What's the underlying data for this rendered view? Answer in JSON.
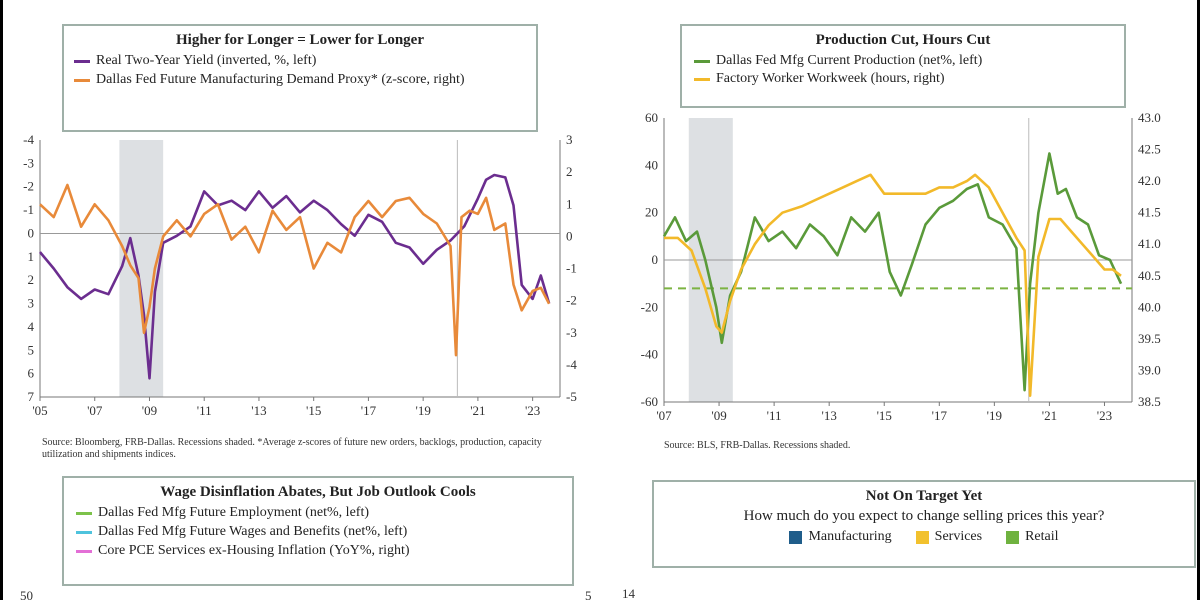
{
  "chart_data": [
    {
      "type": "line",
      "title": "Higher for Longer = Lower for Longer",
      "series": [
        {
          "name": "Real Two-Year Yield (inverted, %, left)",
          "color": "#6b2d8f",
          "axis": "left",
          "x": [
            2005,
            2005.5,
            2006,
            2006.5,
            2007,
            2007.5,
            2008,
            2008.3,
            2008.6,
            2008.8,
            2009,
            2009.2,
            2009.5,
            2010,
            2010.5,
            2011,
            2011.5,
            2012,
            2012.5,
            2013,
            2013.5,
            2014,
            2014.5,
            2015,
            2015.5,
            2016,
            2016.5,
            2017,
            2017.5,
            2018,
            2018.5,
            2019,
            2019.5,
            2020,
            2020.5,
            2021,
            2021.3,
            2021.6,
            2022,
            2022.3,
            2022.6,
            2023,
            2023.3,
            2023.6
          ],
          "y": [
            0.8,
            1.5,
            2.3,
            2.8,
            2.4,
            2.6,
            1.4,
            0.2,
            1.8,
            3.5,
            6.2,
            2.5,
            0.4,
            0.1,
            -0.3,
            -1.8,
            -1.2,
            -1.4,
            -1.0,
            -1.8,
            -1.1,
            -1.6,
            -0.9,
            -1.4,
            -1.0,
            -0.4,
            0.1,
            -0.8,
            -0.5,
            0.4,
            0.6,
            1.3,
            0.7,
            0.3,
            -0.3,
            -1.5,
            -2.3,
            -2.5,
            -2.4,
            -1.2,
            2.2,
            2.8,
            1.8,
            3.0
          ]
        },
        {
          "name": "Dallas Fed Future Manufacturing Demand Proxy* (z-score, right)",
          "color": "#e88a3a",
          "axis": "right",
          "x": [
            2005,
            2005.5,
            2006,
            2006.5,
            2007,
            2007.5,
            2008,
            2008.3,
            2008.6,
            2008.8,
            2009,
            2009.2,
            2009.5,
            2010,
            2010.5,
            2011,
            2011.5,
            2012,
            2012.5,
            2013,
            2013.5,
            2014,
            2014.5,
            2015,
            2015.5,
            2016,
            2016.5,
            2017,
            2017.5,
            2018,
            2018.5,
            2019,
            2019.5,
            2020,
            2020.2,
            2020.4,
            2020.7,
            2021,
            2021.3,
            2021.6,
            2022,
            2022.3,
            2022.6,
            2023,
            2023.3,
            2023.6
          ],
          "y": [
            1.0,
            0.6,
            1.6,
            0.3,
            1.0,
            0.5,
            -0.3,
            -0.9,
            -1.3,
            -3.0,
            -2.2,
            -1.0,
            0.0,
            0.5,
            0.0,
            0.7,
            1.0,
            -0.1,
            0.3,
            -0.5,
            0.8,
            0.2,
            0.6,
            -1.0,
            -0.2,
            -0.5,
            0.6,
            1.1,
            0.6,
            1.1,
            1.2,
            0.7,
            0.4,
            -0.3,
            -3.7,
            0.6,
            0.8,
            0.7,
            1.2,
            0.2,
            0.4,
            -1.5,
            -2.3,
            -1.7,
            -1.6,
            -2.1
          ]
        }
      ],
      "left_ylim": [
        7,
        -4
      ],
      "right_ylim": [
        -5,
        3
      ],
      "left_ticks": [
        "-4",
        "-3",
        "-2",
        "-1",
        "0",
        "1",
        "2",
        "3",
        "4",
        "5",
        "6",
        "7"
      ],
      "right_ticks": [
        "3",
        "2",
        "1",
        "0",
        "-1",
        "-2",
        "-3",
        "-4",
        "-5"
      ],
      "x_ticks": [
        "'05",
        "'07",
        "'09",
        "'11",
        "'13",
        "'15",
        "'17",
        "'19",
        "'21",
        "'23"
      ],
      "recession_shading": [
        [
          2007.9,
          2009.5
        ]
      ],
      "note": "Source: Bloomberg, FRB-Dallas. Recessions shaded. *Average z-scores of future new orders, backlogs, production, capacity utilization and shipments indices."
    },
    {
      "type": "line",
      "title": "Production Cut, Hours Cut",
      "series": [
        {
          "name": "Dallas Fed Mfg Current Production (net%, left)",
          "color": "#5a9a3a",
          "axis": "left",
          "x": [
            2007,
            2007.4,
            2007.8,
            2008.2,
            2008.5,
            2008.9,
            2009.1,
            2009.4,
            2009.8,
            2010.3,
            2010.8,
            2011.3,
            2011.8,
            2012.3,
            2012.8,
            2013.3,
            2013.8,
            2014.3,
            2014.8,
            2015.2,
            2015.6,
            2016,
            2016.5,
            2017,
            2017.5,
            2018,
            2018.4,
            2018.8,
            2019.3,
            2019.8,
            2020.1,
            2020.3,
            2020.6,
            2021,
            2021.3,
            2021.6,
            2022,
            2022.4,
            2022.8,
            2023.2,
            2023.6
          ],
          "y": [
            10,
            18,
            8,
            12,
            0,
            -20,
            -35,
            -15,
            -5,
            18,
            8,
            12,
            5,
            15,
            10,
            2,
            18,
            12,
            20,
            -5,
            -15,
            -2,
            15,
            22,
            25,
            30,
            32,
            18,
            15,
            5,
            -55,
            -10,
            20,
            45,
            28,
            30,
            18,
            15,
            2,
            0,
            -10
          ]
        },
        {
          "name": "Factory Worker Workweek (hours, right)",
          "color": "#f2b92a",
          "axis": "right",
          "x": [
            2007,
            2007.5,
            2008,
            2008.5,
            2008.9,
            2009.1,
            2009.4,
            2009.8,
            2010.3,
            2010.8,
            2011.3,
            2012,
            2012.5,
            2013,
            2013.5,
            2014,
            2014.5,
            2015,
            2015.5,
            2016,
            2016.5,
            2017,
            2017.5,
            2018,
            2018.3,
            2018.8,
            2019.3,
            2019.8,
            2020.1,
            2020.3,
            2020.6,
            2021,
            2021.4,
            2021.8,
            2022.2,
            2022.6,
            2023,
            2023.3,
            2023.6
          ],
          "y": [
            41.1,
            41.1,
            40.9,
            40.3,
            39.7,
            39.6,
            40.1,
            40.6,
            41.0,
            41.3,
            41.5,
            41.6,
            41.7,
            41.8,
            41.9,
            42.0,
            42.1,
            41.8,
            41.8,
            41.8,
            41.8,
            41.9,
            41.9,
            42.0,
            42.1,
            41.9,
            41.5,
            41.1,
            40.9,
            38.6,
            40.8,
            41.4,
            41.4,
            41.2,
            41.0,
            40.8,
            40.6,
            40.6,
            40.5
          ]
        }
      ],
      "left_ylim": [
        -60,
        60
      ],
      "right_ylim": [
        38.5,
        43.0
      ],
      "left_ticks": [
        "60",
        "40",
        "20",
        "0",
        "-20",
        "-40",
        "-60"
      ],
      "right_ticks": [
        "43.0",
        "42.5",
        "42.0",
        "41.5",
        "41.0",
        "40.5",
        "40.0",
        "39.5",
        "39.0",
        "38.5"
      ],
      "x_ticks": [
        "'07",
        "'09",
        "'11",
        "'13",
        "'15",
        "'17",
        "'19",
        "'21",
        "'23"
      ],
      "recession_shading": [
        [
          2007.9,
          2009.5
        ]
      ],
      "reference_line_left": -12,
      "note": "Source: BLS, FRB-Dallas. Recessions shaded."
    },
    {
      "type": "line",
      "title": "Wage Disinflation Abates, But Job Outlook Cools",
      "series": [
        {
          "name": "Dallas Fed Mfg Future Employment (net%, left)",
          "color": "#7cc24a"
        },
        {
          "name": "Dallas Fed Mfg Future Wages and Benefits (net%, left)",
          "color": "#4ec3dd"
        },
        {
          "name": "Core PCE Services ex-Housing Inflation (YoY%, right)",
          "color": "#e36fd6"
        }
      ],
      "left_ticks_visible": [
        "50"
      ],
      "right_ticks_visible": [
        "5"
      ]
    },
    {
      "type": "bar",
      "title": "Not On Target Yet",
      "subtitle": "How much do you expect to change selling prices this year?",
      "series": [
        {
          "name": "Manufacturing",
          "color": "#1f5d8a"
        },
        {
          "name": "Services",
          "color": "#f2c12e"
        },
        {
          "name": "Retail",
          "color": "#6fb23f"
        }
      ],
      "left_ticks_visible": [
        "14"
      ]
    }
  ]
}
